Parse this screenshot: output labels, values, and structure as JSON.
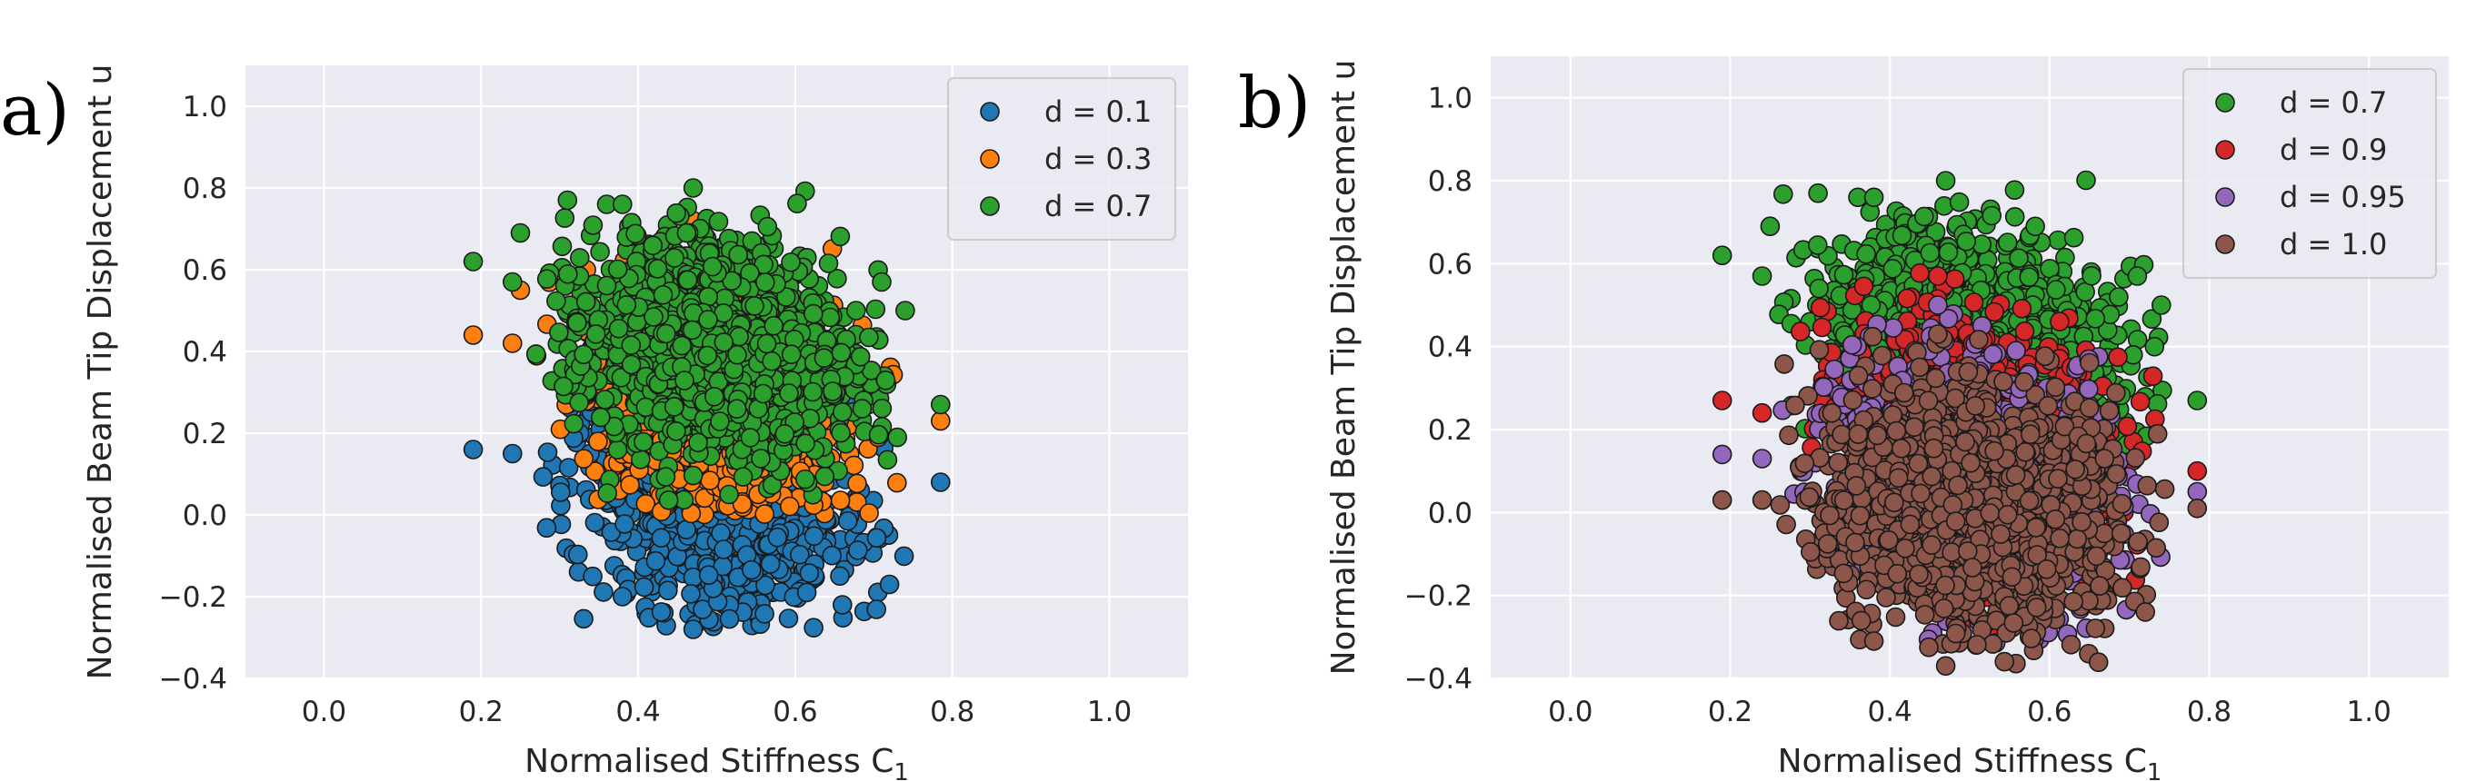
{
  "chart_data": [
    {
      "type": "scatter",
      "panel_label": "a)",
      "xlabel": "Normalised Stiffness C",
      "xlabel_sub": "1",
      "ylabel": "Normalised Beam Tip Displacement u",
      "xlim": [
        -0.1,
        1.1
      ],
      "ylim": [
        -0.4,
        1.1
      ],
      "xticks": [
        0.0,
        0.2,
        0.4,
        0.6,
        0.8,
        1.0
      ],
      "xtick_labels": [
        "0.0",
        "0.2",
        "0.4",
        "0.6",
        "0.8",
        "1.0"
      ],
      "yticks": [
        -0.4,
        -0.2,
        0.0,
        0.2,
        0.4,
        0.6,
        0.8,
        1.0
      ],
      "ytick_labels": [
        "−0.4",
        "−0.2",
        "0.0",
        "0.2",
        "0.4",
        "0.6",
        "0.8",
        "1.0"
      ],
      "grid": true,
      "legend_position": "top-right",
      "series": [
        {
          "name": "d = 0.1",
          "color": "#1f77b4",
          "center": [
            0.5,
            0.03
          ],
          "spread": [
            0.085,
            0.14
          ],
          "n": 850,
          "cutoff": [
            -0.28,
            0.28
          ],
          "outliers": [
            [
              0.19,
              0.16
            ],
            [
              0.24,
              0.15
            ],
            [
              0.785,
              0.08
            ],
            [
              0.47,
              -0.28
            ],
            [
              0.38,
              -0.2
            ],
            [
              0.72,
              -0.17
            ],
            [
              0.66,
              -0.22
            ]
          ]
        },
        {
          "name": "d = 0.3",
          "color": "#ff7f0e",
          "center": [
            0.5,
            0.26
          ],
          "spread": [
            0.085,
            0.14
          ],
          "n": 850,
          "cutoff": [
            0.0,
            0.72
          ],
          "outliers": [
            [
              0.19,
              0.44
            ],
            [
              0.24,
              0.42
            ],
            [
              0.25,
              0.55
            ],
            [
              0.785,
              0.23
            ],
            [
              0.47,
              0.72
            ]
          ]
        },
        {
          "name": "d = 0.7",
          "color": "#2ca02c",
          "center": [
            0.5,
            0.4
          ],
          "spread": [
            0.085,
            0.13
          ],
          "n": 1500,
          "cutoff": [
            0.03,
            0.81
          ],
          "outliers": [
            [
              0.19,
              0.62
            ],
            [
              0.24,
              0.57
            ],
            [
              0.25,
              0.69
            ],
            [
              0.785,
              0.27
            ],
            [
              0.47,
              0.8
            ],
            [
              0.31,
              0.77
            ],
            [
              0.36,
              0.76
            ],
            [
              0.38,
              0.76
            ],
            [
              0.74,
              0.5
            ],
            [
              0.71,
              0.57
            ]
          ]
        }
      ]
    },
    {
      "type": "scatter",
      "panel_label": "b)",
      "xlabel": "Normalised Stiffness C",
      "xlabel_sub": "1",
      "ylabel": "Normalised Beam Tip Displacement u",
      "xlim": [
        -0.1,
        1.1
      ],
      "ylim": [
        -0.4,
        1.1
      ],
      "xticks": [
        0.0,
        0.2,
        0.4,
        0.6,
        0.8,
        1.0
      ],
      "xtick_labels": [
        "0.0",
        "0.2",
        "0.4",
        "0.6",
        "0.8",
        "1.0"
      ],
      "yticks": [
        -0.4,
        -0.2,
        0.0,
        0.2,
        0.4,
        0.6,
        0.8,
        1.0
      ],
      "ytick_labels": [
        "−0.4",
        "−0.2",
        "0.0",
        "0.2",
        "0.4",
        "0.6",
        "0.8",
        "1.0"
      ],
      "grid": true,
      "legend_position": "top-right",
      "series": [
        {
          "name": "d = 0.7",
          "color": "#2ca02c",
          "center": [
            0.5,
            0.4
          ],
          "spread": [
            0.085,
            0.13
          ],
          "n": 1500,
          "cutoff": [
            0.03,
            0.81
          ],
          "outliers": [
            [
              0.19,
              0.62
            ],
            [
              0.24,
              0.57
            ],
            [
              0.25,
              0.69
            ],
            [
              0.785,
              0.27
            ],
            [
              0.47,
              0.8
            ],
            [
              0.31,
              0.77
            ],
            [
              0.36,
              0.76
            ],
            [
              0.38,
              0.76
            ],
            [
              0.74,
              0.5
            ],
            [
              0.71,
              0.57
            ]
          ]
        },
        {
          "name": "d = 0.9",
          "color": "#d62728",
          "center": [
            0.5,
            0.18
          ],
          "spread": [
            0.085,
            0.14
          ],
          "n": 900,
          "cutoff": [
            -0.3,
            0.58
          ],
          "outliers": [
            [
              0.19,
              0.27
            ],
            [
              0.24,
              0.24
            ],
            [
              0.785,
              0.1
            ],
            [
              0.46,
              0.57
            ]
          ]
        },
        {
          "name": "d = 0.95",
          "color": "#9467bd",
          "center": [
            0.5,
            0.1
          ],
          "spread": [
            0.085,
            0.14
          ],
          "n": 900,
          "cutoff": [
            -0.33,
            0.5
          ],
          "outliers": [
            [
              0.19,
              0.14
            ],
            [
              0.24,
              0.13
            ],
            [
              0.785,
              0.05
            ],
            [
              0.46,
              0.5
            ]
          ]
        },
        {
          "name": "d = 1.0",
          "color": "#8c564b",
          "center": [
            0.5,
            0.02
          ],
          "spread": [
            0.085,
            0.14
          ],
          "n": 1700,
          "cutoff": [
            -0.37,
            0.43
          ],
          "outliers": [
            [
              0.19,
              0.03
            ],
            [
              0.24,
              0.03
            ],
            [
              0.785,
              0.01
            ],
            [
              0.47,
              -0.37
            ],
            [
              0.38,
              -0.31
            ],
            [
              0.72,
              -0.24
            ],
            [
              0.46,
              0.43
            ]
          ]
        }
      ]
    }
  ]
}
